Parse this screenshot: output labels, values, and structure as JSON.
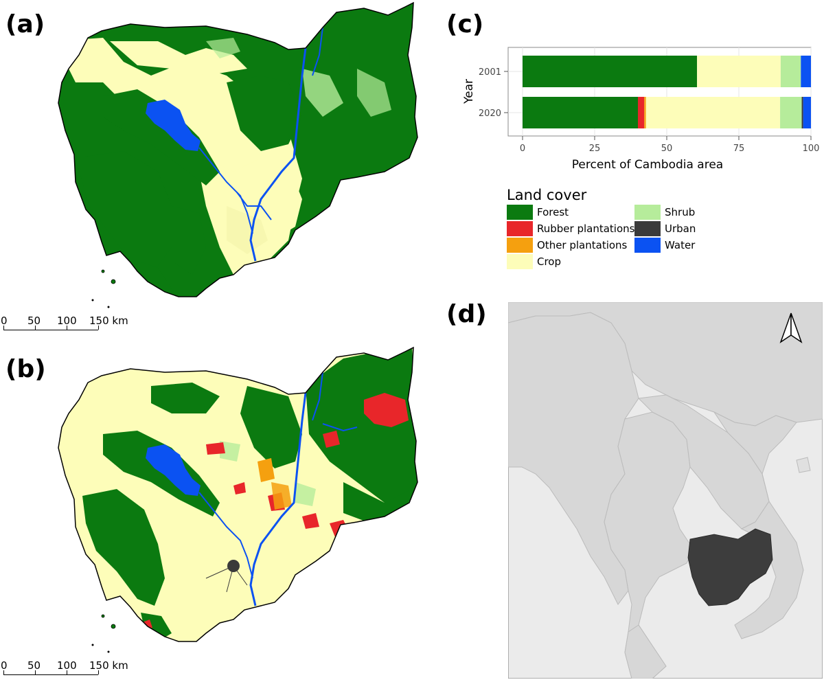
{
  "panels": {
    "a": {
      "label": "(a)"
    },
    "b": {
      "label": "(b)"
    },
    "c": {
      "label": "(c)"
    },
    "d": {
      "label": "(d)"
    }
  },
  "scalebar": {
    "ticks": [
      "0",
      "50",
      "100",
      "150 km"
    ]
  },
  "chart_data": {
    "type": "bar",
    "orientation": "horizontal",
    "stacked": true,
    "categories": [
      "2001",
      "2020"
    ],
    "xlabel": "Percent of Cambodia area",
    "ylabel": "Year",
    "xlim": [
      0,
      100
    ],
    "xticks": [
      0,
      25,
      50,
      75,
      100
    ],
    "grid": true,
    "series": [
      {
        "name": "Forest",
        "color": "#0b7a10",
        "values": [
          60.5,
          40.0
        ]
      },
      {
        "name": "Rubber plantations",
        "color": "#e8262a",
        "values": [
          0.0,
          2.2
        ]
      },
      {
        "name": "Other plantations",
        "color": "#f5a00f",
        "values": [
          0.0,
          0.6
        ]
      },
      {
        "name": "Crop",
        "color": "#fdfdb9",
        "values": [
          29.0,
          46.5
        ]
      },
      {
        "name": "Shrub",
        "color": "#b6ec9b",
        "values": [
          7.0,
          7.5
        ]
      },
      {
        "name": "Urban",
        "color": "#3a3a3a",
        "values": [
          0.0,
          0.5
        ]
      },
      {
        "name": "Water",
        "color": "#0b52f2",
        "values": [
          3.5,
          2.7
        ]
      }
    ]
  },
  "legend": {
    "title": "Land cover",
    "items": [
      {
        "label": "Forest",
        "color": "#0b7a10"
      },
      {
        "label": "Rubber plantations",
        "color": "#e8262a"
      },
      {
        "label": "Other plantations",
        "color": "#f5a00f"
      },
      {
        "label": "Crop",
        "color": "#fdfdb9"
      },
      {
        "label": "Shrub",
        "color": "#b6ec9b"
      },
      {
        "label": "Urban",
        "color": "#3a3a3a"
      },
      {
        "label": "Water",
        "color": "#0b52f2"
      }
    ]
  },
  "inset_map": {
    "north_arrow_icon": "north-arrow-icon",
    "highlight_color": "#3d3d3d",
    "land_color": "#d7d7d7",
    "sea_color": "#ebebeb"
  }
}
